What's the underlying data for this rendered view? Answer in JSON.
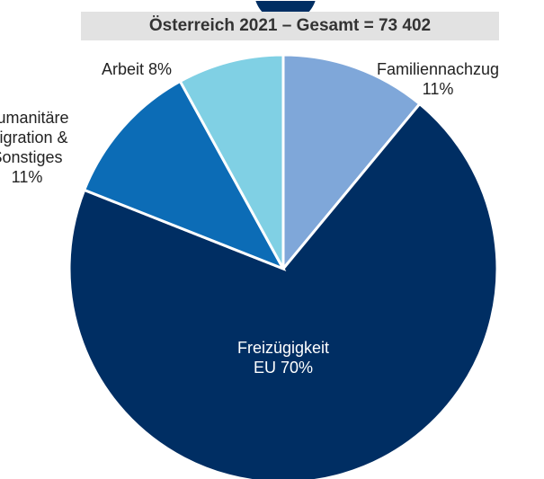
{
  "chart_data": {
    "type": "pie",
    "title": "Österreich 2021 – Gesamt = 73 402",
    "categories": [
      "Familiennachzug",
      "Freizügigkeit EU",
      "Humanitäre Migration & Sonstiges",
      "Arbeit"
    ],
    "values": [
      11,
      70,
      11,
      8
    ],
    "value_labels": [
      "11%",
      "70%",
      "11%",
      "8%"
    ],
    "colors": [
      "#7fa7d9",
      "#002e63",
      "#0c6cb6",
      "#80d0e4"
    ]
  }
}
